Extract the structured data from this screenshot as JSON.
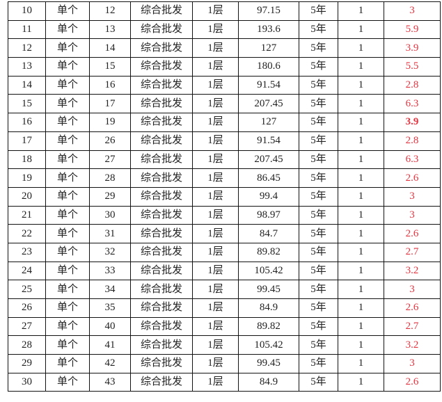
{
  "accent_color": "#e8333f",
  "rows": [
    {
      "no": "10",
      "type": "单个",
      "unit": "12",
      "use": "综合批发",
      "floor": "1层",
      "area": "97.15",
      "term": "5年",
      "qty": "1",
      "value": "3",
      "bold": false
    },
    {
      "no": "11",
      "type": "单个",
      "unit": "13",
      "use": "综合批发",
      "floor": "1层",
      "area": "193.6",
      "term": "5年",
      "qty": "1",
      "value": "5.9",
      "bold": false
    },
    {
      "no": "12",
      "type": "单个",
      "unit": "14",
      "use": "综合批发",
      "floor": "1层",
      "area": "127",
      "term": "5年",
      "qty": "1",
      "value": "3.9",
      "bold": false
    },
    {
      "no": "13",
      "type": "单个",
      "unit": "15",
      "use": "综合批发",
      "floor": "1层",
      "area": "180.6",
      "term": "5年",
      "qty": "1",
      "value": "5.5",
      "bold": false
    },
    {
      "no": "14",
      "type": "单个",
      "unit": "16",
      "use": "综合批发",
      "floor": "1层",
      "area": "91.54",
      "term": "5年",
      "qty": "1",
      "value": "2.8",
      "bold": false
    },
    {
      "no": "15",
      "type": "单个",
      "unit": "17",
      "use": "综合批发",
      "floor": "1层",
      "area": "207.45",
      "term": "5年",
      "qty": "1",
      "value": "6.3",
      "bold": false
    },
    {
      "no": "16",
      "type": "单个",
      "unit": "19",
      "use": "综合批发",
      "floor": "1层",
      "area": "127",
      "term": "5年",
      "qty": "1",
      "value": "3.9",
      "bold": true
    },
    {
      "no": "17",
      "type": "单个",
      "unit": "26",
      "use": "综合批发",
      "floor": "1层",
      "area": "91.54",
      "term": "5年",
      "qty": "1",
      "value": "2.8",
      "bold": false
    },
    {
      "no": "18",
      "type": "单个",
      "unit": "27",
      "use": "综合批发",
      "floor": "1层",
      "area": "207.45",
      "term": "5年",
      "qty": "1",
      "value": "6.3",
      "bold": false
    },
    {
      "no": "19",
      "type": "单个",
      "unit": "28",
      "use": "综合批发",
      "floor": "1层",
      "area": "86.45",
      "term": "5年",
      "qty": "1",
      "value": "2.6",
      "bold": false
    },
    {
      "no": "20",
      "type": "单个",
      "unit": "29",
      "use": "综合批发",
      "floor": "1层",
      "area": "99.4",
      "term": "5年",
      "qty": "1",
      "value": "3",
      "bold": false
    },
    {
      "no": "21",
      "type": "单个",
      "unit": "30",
      "use": "综合批发",
      "floor": "1层",
      "area": "98.97",
      "term": "5年",
      "qty": "1",
      "value": "3",
      "bold": false
    },
    {
      "no": "22",
      "type": "单个",
      "unit": "31",
      "use": "综合批发",
      "floor": "1层",
      "area": "84.7",
      "term": "5年",
      "qty": "1",
      "value": "2.6",
      "bold": false
    },
    {
      "no": "23",
      "type": "单个",
      "unit": "32",
      "use": "综合批发",
      "floor": "1层",
      "area": "89.82",
      "term": "5年",
      "qty": "1",
      "value": "2.7",
      "bold": false
    },
    {
      "no": "24",
      "type": "单个",
      "unit": "33",
      "use": "综合批发",
      "floor": "1层",
      "area": "105.42",
      "term": "5年",
      "qty": "1",
      "value": "3.2",
      "bold": false
    },
    {
      "no": "25",
      "type": "单个",
      "unit": "34",
      "use": "综合批发",
      "floor": "1层",
      "area": "99.45",
      "term": "5年",
      "qty": "1",
      "value": "3",
      "bold": false
    },
    {
      "no": "26",
      "type": "单个",
      "unit": "35",
      "use": "综合批发",
      "floor": "1层",
      "area": "84.9",
      "term": "5年",
      "qty": "1",
      "value": "2.6",
      "bold": false
    },
    {
      "no": "27",
      "type": "单个",
      "unit": "40",
      "use": "综合批发",
      "floor": "1层",
      "area": "89.82",
      "term": "5年",
      "qty": "1",
      "value": "2.7",
      "bold": false
    },
    {
      "no": "28",
      "type": "单个",
      "unit": "41",
      "use": "综合批发",
      "floor": "1层",
      "area": "105.42",
      "term": "5年",
      "qty": "1",
      "value": "3.2",
      "bold": false
    },
    {
      "no": "29",
      "type": "单个",
      "unit": "42",
      "use": "综合批发",
      "floor": "1层",
      "area": "99.45",
      "term": "5年",
      "qty": "1",
      "value": "3",
      "bold": false
    },
    {
      "no": "30",
      "type": "单个",
      "unit": "43",
      "use": "综合批发",
      "floor": "1层",
      "area": "84.9",
      "term": "5年",
      "qty": "1",
      "value": "2.6",
      "bold": false
    }
  ]
}
